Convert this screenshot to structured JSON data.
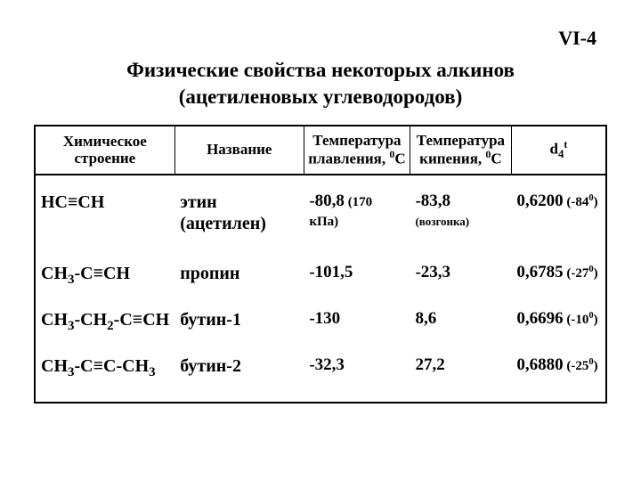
{
  "page_number": "VI-4",
  "title_line1": "Физические свойства некоторых алкинов",
  "title_line2": "(ацетиленовых углеводородов)",
  "headers": {
    "structure_line1": "Химическое",
    "structure_line2": "строение",
    "name": "Название",
    "melting_line1": "Температура",
    "melting_line2_pre": "плавления, ",
    "melting_line2_sup": "0",
    "melting_line2_unit": "С",
    "boiling_line1": "Температура",
    "boiling_line2_pre": "кипения, ",
    "boiling_line2_sup": "0",
    "boiling_line2_unit": "С",
    "density_d": "d",
    "density_sub": "4",
    "density_sup": "t"
  },
  "rows": [
    {
      "formula_pre": "НС",
      "formula_triple": "≡",
      "formula_post": "СН",
      "name": "этин (ацетилен)",
      "melting": "-80,8",
      "melting_note": " (170 кПа)",
      "boiling": "-83,8",
      "boiling_note": "(возгонка)",
      "density": "0,6200",
      "density_note_pre": " (-84",
      "density_note_sup": "0",
      "density_note_post": ")"
    },
    {
      "formula_ch3": "СН",
      "formula_sub3": "3",
      "formula_mid": "-С",
      "formula_triple": "≡",
      "formula_post": "СН",
      "name": "пропин",
      "melting": "-101,5",
      "boiling": "-23,3",
      "density": "0,6785",
      "density_note_pre": " (-27",
      "density_note_sup": "0",
      "density_note_post": ")"
    },
    {
      "formula_ch3": "СН",
      "formula_sub3a": "3",
      "formula_dash1": "-СН",
      "formula_sub2": "2",
      "formula_mid": "-С",
      "formula_triple": "≡",
      "formula_post": "СН",
      "name": "бутин-1",
      "melting": " -130",
      "boiling": " 8,6",
      "density": "0,6696",
      "density_note_pre": " (-10",
      "density_note_sup": "0",
      "density_note_post": ")"
    },
    {
      "formula_ch3": "СН",
      "formula_sub3a": "3",
      "formula_mid": "-С",
      "formula_triple": "≡",
      "formula_mid2": "С-СН",
      "formula_sub3b": "3",
      "name": "бутин-2",
      "melting": " -32,3",
      "boiling": " 27,2",
      "density": "0,6880",
      "density_note_pre": " (-25",
      "density_note_sup": "0",
      "density_note_post": ")"
    }
  ],
  "styling": {
    "background_color": "#ffffff",
    "text_color": "#000000",
    "border_color": "#000000",
    "outer_border_width": 2,
    "header_border_width": 2,
    "column_divider_width": 1,
    "font_family": "Times New Roman",
    "title_fontsize": 23,
    "header_fontsize": 17,
    "cell_fontsize": 19,
    "note_fontsize": 13,
    "paren_fontsize": 15,
    "page_number_fontsize": 22,
    "col_widths_pct": [
      21,
      24,
      19,
      18,
      18
    ]
  }
}
